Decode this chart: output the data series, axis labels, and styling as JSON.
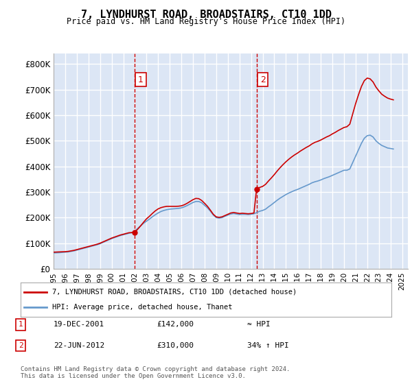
{
  "title": "7, LYNDHURST ROAD, BROADSTAIRS, CT10 1DD",
  "subtitle": "Price paid vs. HM Land Registry's House Price Index (HPI)",
  "ylabel_ticks": [
    "£0",
    "£100K",
    "£200K",
    "£300K",
    "£400K",
    "£500K",
    "£600K",
    "£700K",
    "£800K"
  ],
  "ytick_vals": [
    0,
    100000,
    200000,
    300000,
    400000,
    500000,
    600000,
    700000,
    800000
  ],
  "ylim": [
    0,
    840000
  ],
  "xlim_start": 1995.0,
  "xlim_end": 2025.5,
  "background_color": "#ffffff",
  "plot_bg_color": "#dce6f5",
  "grid_color": "#ffffff",
  "transaction1_x": 2001.97,
  "transaction1_y": 142000,
  "transaction2_x": 2012.47,
  "transaction2_y": 310000,
  "legend_line1": "7, LYNDHURST ROAD, BROADSTAIRS, CT10 1DD (detached house)",
  "legend_line2": "HPI: Average price, detached house, Thanet",
  "table_row1": [
    "1",
    "19-DEC-2001",
    "£142,000",
    "≈ HPI"
  ],
  "table_row2": [
    "2",
    "22-JUN-2012",
    "£310,000",
    "34% ↑ HPI"
  ],
  "footer": "Contains HM Land Registry data © Crown copyright and database right 2024.\nThis data is licensed under the Open Government Licence v3.0.",
  "red_line_color": "#cc0000",
  "blue_line_color": "#6699cc",
  "hpi_data_x": [
    1995.0,
    1995.25,
    1995.5,
    1995.75,
    1996.0,
    1996.25,
    1996.5,
    1996.75,
    1997.0,
    1997.25,
    1997.5,
    1997.75,
    1998.0,
    1998.25,
    1998.5,
    1998.75,
    1999.0,
    1999.25,
    1999.5,
    1999.75,
    2000.0,
    2000.25,
    2000.5,
    2000.75,
    2001.0,
    2001.25,
    2001.5,
    2001.75,
    2002.0,
    2002.25,
    2002.5,
    2002.75,
    2003.0,
    2003.25,
    2003.5,
    2003.75,
    2004.0,
    2004.25,
    2004.5,
    2004.75,
    2005.0,
    2005.25,
    2005.5,
    2005.75,
    2006.0,
    2006.25,
    2006.5,
    2006.75,
    2007.0,
    2007.25,
    2007.5,
    2007.75,
    2008.0,
    2008.25,
    2008.5,
    2008.75,
    2009.0,
    2009.25,
    2009.5,
    2009.75,
    2010.0,
    2010.25,
    2010.5,
    2010.75,
    2011.0,
    2011.25,
    2011.5,
    2011.75,
    2012.0,
    2012.25,
    2012.5,
    2012.75,
    2013.0,
    2013.25,
    2013.5,
    2013.75,
    2014.0,
    2014.25,
    2014.5,
    2014.75,
    2015.0,
    2015.25,
    2015.5,
    2015.75,
    2016.0,
    2016.25,
    2016.5,
    2016.75,
    2017.0,
    2017.25,
    2017.5,
    2017.75,
    2018.0,
    2018.25,
    2018.5,
    2018.75,
    2019.0,
    2019.25,
    2019.5,
    2019.75,
    2020.0,
    2020.25,
    2020.5,
    2020.75,
    2021.0,
    2021.25,
    2021.5,
    2021.75,
    2022.0,
    2022.25,
    2022.5,
    2022.75,
    2023.0,
    2023.25,
    2023.5,
    2023.75,
    2024.0,
    2024.25
  ],
  "hpi_data_y": [
    62000,
    62500,
    63000,
    64000,
    65000,
    66000,
    68000,
    70000,
    73000,
    76000,
    79000,
    82000,
    85000,
    88000,
    91000,
    94000,
    98000,
    103000,
    108000,
    113000,
    118000,
    122000,
    126000,
    130000,
    133000,
    136000,
    139000,
    141000,
    148000,
    158000,
    168000,
    178000,
    186000,
    194000,
    203000,
    211000,
    218000,
    224000,
    228000,
    231000,
    233000,
    234000,
    235000,
    236000,
    238000,
    242000,
    247000,
    253000,
    259000,
    263000,
    263000,
    258000,
    248000,
    238000,
    225000,
    210000,
    200000,
    198000,
    200000,
    205000,
    210000,
    214000,
    216000,
    214000,
    212000,
    213000,
    213000,
    212000,
    213000,
    215000,
    220000,
    225000,
    228000,
    233000,
    242000,
    250000,
    259000,
    268000,
    276000,
    283000,
    290000,
    296000,
    301000,
    306000,
    310000,
    315000,
    320000,
    325000,
    330000,
    336000,
    340000,
    343000,
    347000,
    352000,
    356000,
    360000,
    365000,
    370000,
    375000,
    380000,
    385000,
    385000,
    390000,
    415000,
    440000,
    465000,
    490000,
    510000,
    520000,
    522000,
    515000,
    500000,
    490000,
    482000,
    477000,
    472000,
    470000,
    468000
  ],
  "price_data_x": [
    1995.0,
    1995.25,
    1995.5,
    1995.75,
    1996.0,
    1996.25,
    1996.5,
    1996.75,
    1997.0,
    1997.25,
    1997.5,
    1997.75,
    1998.0,
    1998.25,
    1998.5,
    1998.75,
    1999.0,
    1999.25,
    1999.5,
    1999.75,
    2000.0,
    2000.25,
    2000.5,
    2000.75,
    2001.0,
    2001.25,
    2001.5,
    2001.75,
    2001.97,
    2002.25,
    2002.5,
    2002.75,
    2003.0,
    2003.25,
    2003.5,
    2003.75,
    2004.0,
    2004.25,
    2004.5,
    2004.75,
    2005.0,
    2005.25,
    2005.5,
    2005.75,
    2006.0,
    2006.25,
    2006.5,
    2006.75,
    2007.0,
    2007.25,
    2007.5,
    2007.75,
    2008.0,
    2008.25,
    2008.5,
    2008.75,
    2009.0,
    2009.25,
    2009.5,
    2009.75,
    2010.0,
    2010.25,
    2010.5,
    2010.75,
    2011.0,
    2011.25,
    2011.5,
    2011.75,
    2012.0,
    2012.25,
    2012.47,
    2012.75,
    2013.0,
    2013.25,
    2013.5,
    2013.75,
    2014.0,
    2014.25,
    2014.5,
    2014.75,
    2015.0,
    2015.25,
    2015.5,
    2015.75,
    2016.0,
    2016.25,
    2016.5,
    2016.75,
    2017.0,
    2017.25,
    2017.5,
    2017.75,
    2018.0,
    2018.25,
    2018.5,
    2018.75,
    2019.0,
    2019.25,
    2019.5,
    2019.75,
    2020.0,
    2020.25,
    2020.5,
    2020.75,
    2021.0,
    2021.25,
    2021.5,
    2021.75,
    2022.0,
    2022.25,
    2022.5,
    2022.75,
    2023.0,
    2023.25,
    2023.5,
    2023.75,
    2024.0,
    2024.25
  ],
  "price_data_y": [
    65000,
    65500,
    66000,
    66500,
    67000,
    68000,
    70000,
    72000,
    75000,
    78000,
    81000,
    84000,
    87000,
    90000,
    93000,
    96000,
    100000,
    105000,
    110000,
    115000,
    120000,
    124000,
    128000,
    132000,
    135000,
    138000,
    141000,
    141500,
    142000,
    155000,
    168000,
    182000,
    195000,
    205000,
    216000,
    226000,
    234000,
    239000,
    242000,
    244000,
    244000,
    244000,
    244000,
    244500,
    246000,
    250000,
    256000,
    263000,
    270000,
    275000,
    274000,
    267000,
    256000,
    244000,
    229000,
    213000,
    203000,
    201000,
    203000,
    208000,
    213000,
    218000,
    220000,
    218000,
    216000,
    217000,
    216000,
    215000,
    216000,
    218000,
    310000,
    318000,
    322000,
    330000,
    343000,
    355000,
    368000,
    382000,
    395000,
    407000,
    418000,
    428000,
    437000,
    445000,
    452000,
    460000,
    467000,
    474000,
    480000,
    488000,
    494000,
    498000,
    503000,
    509000,
    515000,
    520000,
    527000,
    533000,
    540000,
    546000,
    552000,
    555000,
    565000,
    605000,
    645000,
    680000,
    712000,
    735000,
    745000,
    742000,
    730000,
    710000,
    695000,
    682000,
    674000,
    667000,
    663000,
    660000
  ],
  "xtick_years": [
    1995,
    1996,
    1997,
    1998,
    1999,
    2000,
    2001,
    2002,
    2003,
    2004,
    2005,
    2006,
    2007,
    2008,
    2009,
    2010,
    2011,
    2012,
    2013,
    2014,
    2015,
    2016,
    2017,
    2018,
    2019,
    2020,
    2021,
    2022,
    2023,
    2024,
    2025
  ]
}
